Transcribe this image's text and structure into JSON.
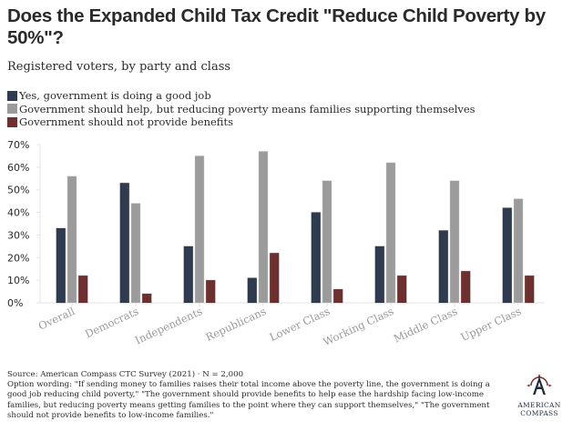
{
  "header": {
    "title": "Does the Expanded Child Tax Credit \"Reduce Child Poverty by 50%\"?",
    "subtitle": "Registered voters, by party and class"
  },
  "footer": {
    "source": "Source: American Compass CTC Survey (2021) · N = 2,000",
    "wording": "Option wording: \"If sending money to families raises their total income above the poverty line, the government is doing a good job reducing child poverty,\" \"The government should provide benefits to help ease the hardship facing low-income families, but reducing poverty means getting families to the point where they can support themselves,\" \"The government should not provide benefits to low-income families.\""
  },
  "logo": {
    "line1": "AMERICAN",
    "line2": "COMPASS",
    "icon": "compass-logo-icon"
  },
  "chart_data": {
    "type": "bar",
    "title": "Does the Expanded Child Tax Credit \"Reduce Child Poverty by 50%\"?",
    "subtitle": "Registered voters, by party and class",
    "xlabel": "",
    "ylabel": "",
    "ylim": [
      0,
      70
    ],
    "yticks": [
      0,
      10,
      20,
      30,
      40,
      50,
      60,
      70
    ],
    "ytick_labels": [
      "0%",
      "10%",
      "20%",
      "30%",
      "40%",
      "50%",
      "60%",
      "70%"
    ],
    "grid": false,
    "legend_position": "top-left",
    "categories": [
      "Overall",
      "Democrats",
      "Independents",
      "Republicans",
      "Lower Class",
      "Working Class",
      "Middle Class",
      "Upper Class"
    ],
    "series": [
      {
        "name": "Yes, government is doing a good job",
        "color": "#2f3b4e",
        "values": [
          33,
          53,
          25,
          11,
          40,
          25,
          32,
          42
        ]
      },
      {
        "name": "Government should help, but reducing poverty means families supporting themselves",
        "color": "#9b9b9b",
        "values": [
          56,
          44,
          65,
          67,
          54,
          62,
          54,
          46
        ]
      },
      {
        "name": "Government should not provide benefits",
        "color": "#6f2f2f",
        "values": [
          12,
          4,
          10,
          22,
          6,
          12,
          14,
          12
        ]
      }
    ]
  }
}
